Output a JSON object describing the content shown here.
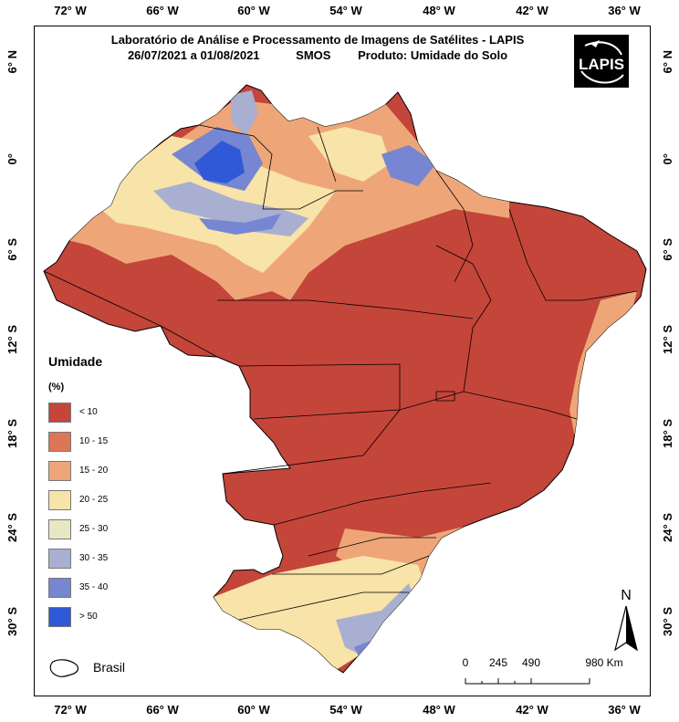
{
  "title": {
    "line1": "Laboratório de Análise e Processamento de Imagens de Satélites - LAPIS",
    "period": "26/07/2021  a  01/08/2021",
    "sensor": "SMOS",
    "product": "Produto: Umidade do Solo"
  },
  "logo_text": "LAPIS",
  "longitude_ticks": [
    "72° W",
    "66° W",
    "60° W",
    "54° W",
    "48° W",
    "42° W",
    "36° W"
  ],
  "latitude_ticks": [
    "6° N",
    "0°",
    "6° S",
    "12° S",
    "18° S",
    "24° S",
    "30° S"
  ],
  "legend": {
    "title": "Umidade",
    "unit": "(%)",
    "items": [
      {
        "label": "< 10",
        "color": "#c4453a"
      },
      {
        "label": "10 - 15",
        "color": "#dd7657"
      },
      {
        "label": "15 - 20",
        "color": "#eea678"
      },
      {
        "label": "20 - 25",
        "color": "#f8e3a8"
      },
      {
        "label": "25 - 30",
        "color": "#e8e7c4"
      },
      {
        "label": "30 - 35",
        "color": "#a9afd0"
      },
      {
        "label": "35 - 40",
        "color": "#7686d2"
      },
      {
        "label": "> 50",
        "color": "#2f59d6"
      }
    ]
  },
  "country_label": "Brasil",
  "scale_bar": {
    "labels": [
      "0",
      "245",
      "490",
      "980 Km"
    ]
  },
  "north_label": "N"
}
